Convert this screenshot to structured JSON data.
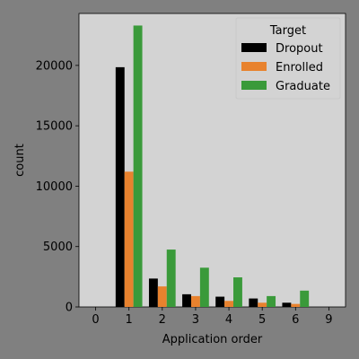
{
  "chart_data": {
    "type": "bar",
    "categories": [
      "0",
      "1",
      "2",
      "3",
      "4",
      "5",
      "6",
      "9"
    ],
    "series": [
      {
        "name": "Dropout",
        "color": "#000000",
        "values": [
          1,
          19850,
          2350,
          1050,
          850,
          700,
          350,
          1
        ]
      },
      {
        "name": "Enrolled",
        "color": "#e8822e",
        "values": [
          1,
          11200,
          1700,
          900,
          500,
          350,
          250,
          0
        ]
      },
      {
        "name": "Graduate",
        "color": "#3a9a3a",
        "values": [
          1,
          23300,
          4750,
          3250,
          2450,
          900,
          1350,
          1
        ]
      }
    ],
    "title": "",
    "xlabel": "Application order",
    "ylabel": "count",
    "ylim": [
      0,
      24300
    ],
    "yticks": [
      0,
      5000,
      10000,
      15000,
      20000
    ],
    "ytick_labels": [
      "0",
      "5000",
      "10000",
      "15000",
      "20000"
    ],
    "legend": {
      "title": "Target",
      "placement": "top-right"
    },
    "plot_background": "#d3d3d3",
    "grid": false
  }
}
